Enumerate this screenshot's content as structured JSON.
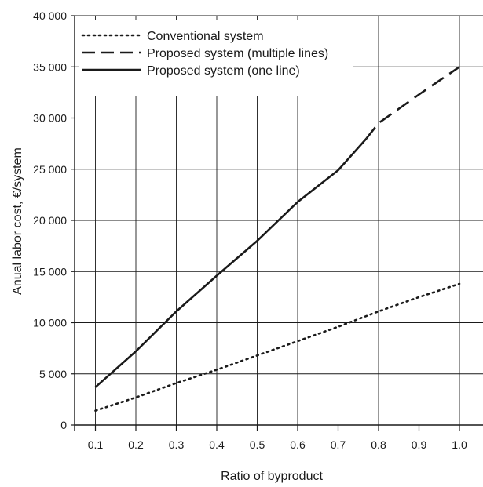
{
  "chart_data": {
    "type": "line",
    "title": "",
    "xlabel": "Ratio of byproduct",
    "ylabel": "Anual labor cost, €/system",
    "xlim": [
      0.0,
      1.05
    ],
    "ylim": [
      0,
      40000
    ],
    "x_ticks": [
      0.1,
      0.2,
      0.3,
      0.4,
      0.5,
      0.6,
      0.7,
      0.8,
      0.9,
      1.0
    ],
    "x_tick_labels": [
      "0.1",
      "0.2",
      "0.3",
      "0.4",
      "0.5",
      "0.6",
      "0.7",
      "0.8",
      "0.9",
      "1.0"
    ],
    "y_ticks": [
      0,
      5000,
      10000,
      15000,
      20000,
      25000,
      30000,
      35000,
      40000
    ],
    "y_tick_labels": [
      "0",
      "5 000",
      "10 000",
      "15 000",
      "20 000",
      "25 000",
      "30 000",
      "35 000",
      "40 000"
    ],
    "grid": true,
    "legend_position": "top-left",
    "series": [
      {
        "name": "Conventional system",
        "style": "dotted",
        "x": [
          0.1,
          0.2,
          0.3,
          0.4,
          0.5,
          0.6,
          0.7,
          0.8,
          0.9,
          1.0
        ],
        "values": [
          1400,
          2700,
          4100,
          5400,
          6800,
          8200,
          9600,
          11100,
          12500,
          13800
        ]
      },
      {
        "name": "Proposed system (multiple lines)",
        "style": "dashed",
        "x": [
          0.77,
          0.8,
          0.9,
          1.0
        ],
        "values": [
          28000,
          29500,
          32300,
          35000
        ]
      },
      {
        "name": "Proposed system (one line)",
        "style": "solid",
        "x": [
          0.1,
          0.2,
          0.3,
          0.4,
          0.5,
          0.6,
          0.7,
          0.77
        ],
        "values": [
          3700,
          7200,
          11100,
          14600,
          18000,
          21800,
          24900,
          28000
        ]
      }
    ],
    "colors": {
      "lines": "#1a1a1a",
      "grid": "#1a1a1a"
    }
  }
}
